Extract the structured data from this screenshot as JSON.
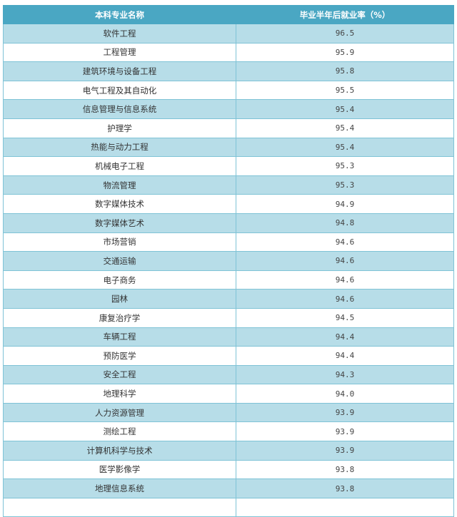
{
  "table": {
    "headers": [
      "本科专业名称",
      "毕业半年后就业率（%）"
    ],
    "rows": [
      [
        "软件工程",
        "96.5"
      ],
      [
        "工程管理",
        "95.9"
      ],
      [
        "建筑环境与设备工程",
        "95.8"
      ],
      [
        "电气工程及其自动化",
        "95.5"
      ],
      [
        "信息管理与信息系统",
        "95.4"
      ],
      [
        "护理学",
        "95.4"
      ],
      [
        "热能与动力工程",
        "95.4"
      ],
      [
        "机械电子工程",
        "95.3"
      ],
      [
        "物流管理",
        "95.3"
      ],
      [
        "数字媒体技术",
        "94.9"
      ],
      [
        "数字媒体艺术",
        "94.8"
      ],
      [
        "市场营销",
        "94.6"
      ],
      [
        "交通运输",
        "94.6"
      ],
      [
        "电子商务",
        "94.6"
      ],
      [
        "园林",
        "94.6"
      ],
      [
        "康复治疗学",
        "94.5"
      ],
      [
        "车辆工程",
        "94.4"
      ],
      [
        "预防医学",
        "94.4"
      ],
      [
        "安全工程",
        "94.3"
      ],
      [
        "地理科学",
        "94.0"
      ],
      [
        "人力资源管理",
        "93.9"
      ],
      [
        "测绘工程",
        "93.9"
      ],
      [
        "计算机科学与技术",
        "93.9"
      ],
      [
        "医学影像学",
        "93.8"
      ],
      [
        "地理信息系统",
        "93.8"
      ],
      [
        "",
        ""
      ]
    ]
  },
  "colors": {
    "header": "#4aa7c3",
    "stripe": "#b7dde8",
    "border": "#7fc3d6"
  }
}
